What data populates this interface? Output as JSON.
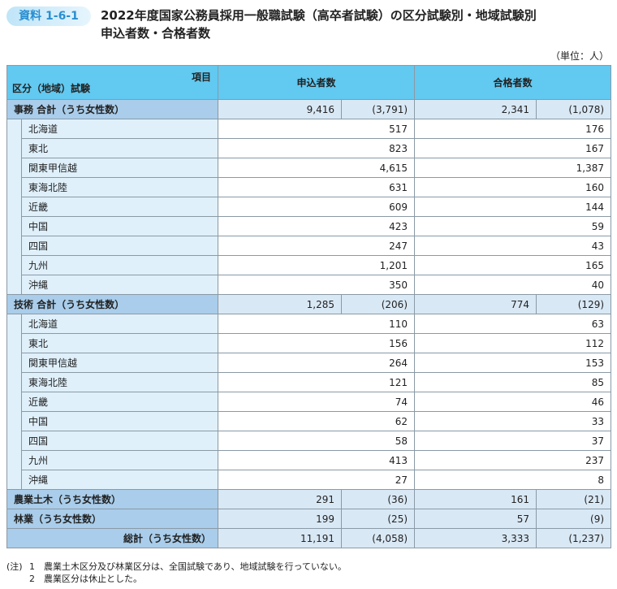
{
  "header": {
    "badge": "資料 1-6-1",
    "title_lines": [
      "2022年度国家公務員採用一般職試験（高卒者試験）の区分試験別・地域試験別",
      "申込者数・合格者数"
    ],
    "unit": "（単位：人）"
  },
  "table": {
    "corner_top": "項目",
    "corner_bottom": "区分（地域）試験",
    "columns": [
      "申込者数",
      "合格者数"
    ],
    "sections": [
      {
        "label": "事務 合計（うち女性数）",
        "cells": [
          "9,416",
          "(3,791)",
          "2,341",
          "(1,078)"
        ],
        "regions": [
          {
            "label": "北海道",
            "cells": [
              "517",
              "176"
            ]
          },
          {
            "label": "東北",
            "cells": [
              "823",
              "167"
            ]
          },
          {
            "label": "関東甲信越",
            "cells": [
              "4,615",
              "1,387"
            ]
          },
          {
            "label": "東海北陸",
            "cells": [
              "631",
              "160"
            ]
          },
          {
            "label": "近畿",
            "cells": [
              "609",
              "144"
            ]
          },
          {
            "label": "中国",
            "cells": [
              "423",
              "59"
            ]
          },
          {
            "label": "四国",
            "cells": [
              "247",
              "43"
            ]
          },
          {
            "label": "九州",
            "cells": [
              "1,201",
              "165"
            ]
          },
          {
            "label": "沖縄",
            "cells": [
              "350",
              "40"
            ]
          }
        ]
      },
      {
        "label": "技術 合計（うち女性数）",
        "cells": [
          "1,285",
          "(206)",
          "774",
          "(129)"
        ],
        "regions": [
          {
            "label": "北海道",
            "cells": [
              "110",
              "63"
            ]
          },
          {
            "label": "東北",
            "cells": [
              "156",
              "112"
            ]
          },
          {
            "label": "関東甲信越",
            "cells": [
              "264",
              "153"
            ]
          },
          {
            "label": "東海北陸",
            "cells": [
              "121",
              "85"
            ]
          },
          {
            "label": "近畿",
            "cells": [
              "74",
              "46"
            ]
          },
          {
            "label": "中国",
            "cells": [
              "62",
              "33"
            ]
          },
          {
            "label": "四国",
            "cells": [
              "58",
              "37"
            ]
          },
          {
            "label": "九州",
            "cells": [
              "413",
              "237"
            ]
          },
          {
            "label": "沖縄",
            "cells": [
              "27",
              "8"
            ]
          }
        ]
      }
    ],
    "others": [
      {
        "label": "農業土木（うち女性数）",
        "cells": [
          "291",
          "(36)",
          "161",
          "(21)"
        ]
      },
      {
        "label": "林業（うち女性数）",
        "cells": [
          "199",
          "(25)",
          "57",
          "(9)"
        ]
      }
    ],
    "total": {
      "label": "総計（うち女性数）",
      "cells": [
        "11,191",
        "(4,058)",
        "3,333",
        "(1,237)"
      ]
    }
  },
  "notes": {
    "label": "(注)",
    "items": [
      {
        "number": "1",
        "text": "農業土木区分及び林業区分は、全国試験であり、地域試験を行っていない。"
      },
      {
        "number": "2",
        "text": "農業区分は休止とした。"
      }
    ]
  }
}
